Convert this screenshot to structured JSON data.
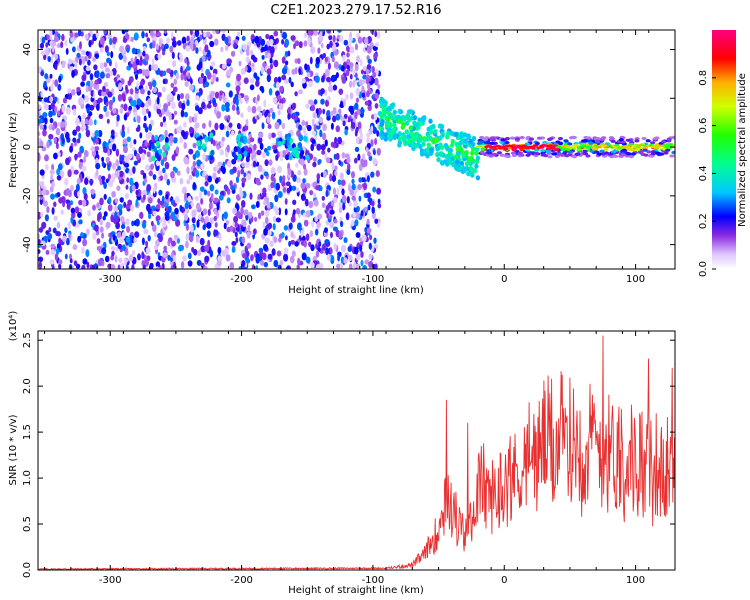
{
  "title": "C2E1.2023.279.17.52.R16",
  "chart_data": [
    {
      "type": "heatmap",
      "xlabel": "Height of straight line (km)",
      "ylabel": "Frequency (Hz)",
      "xlim": [
        -355,
        130
      ],
      "ylim": [
        -50,
        48
      ],
      "xticks": [
        -300,
        -200,
        -100,
        0,
        100
      ],
      "yticks": [
        -40,
        -20,
        0,
        20,
        40
      ],
      "colorbar": {
        "label": "Normalized spectral amplitude",
        "range": [
          0,
          1
        ],
        "ticks": [
          0.0,
          0.2,
          0.4,
          0.6,
          0.8
        ],
        "colormap": "rainbow (white-violet-blue-cyan-green-yellow-red-magenta)"
      },
      "regions": [
        {
          "x": [
            -355,
            -95
          ],
          "freq": [
            -50,
            48
          ],
          "amplitude": [
            0.05,
            0.3
          ],
          "pattern": "broadband scattered noise"
        },
        {
          "x": [
            -95,
            -20
          ],
          "freq_center": [
            12,
            -5
          ],
          "amplitude": [
            0.3,
            0.6
          ],
          "pattern": "descending band"
        },
        {
          "x": [
            -20,
            130
          ],
          "freq_center": 0,
          "amplitude": [
            0.5,
            1.0
          ],
          "pattern": "narrow band near 0 Hz, peak ~-15 to 40 km"
        }
      ],
      "grid": false
    },
    {
      "type": "line",
      "xlabel": "Height of straight line (km)",
      "ylabel": "SNR (10 * v/v)",
      "y_multiplier": "(x10⁴)",
      "xlim": [
        -355,
        130
      ],
      "ylim": [
        0,
        2.6
      ],
      "xticks": [
        -300,
        -200,
        -100,
        0,
        100
      ],
      "yticks": [
        0.0,
        0.5,
        1.0,
        1.5,
        2.0,
        2.5
      ],
      "color": "#e83030",
      "envelope": {
        "x": [
          -355,
          -90,
          -70,
          -60,
          -50,
          -45,
          -40,
          -35,
          -30,
          -25,
          -20,
          -15,
          -10,
          -5,
          0,
          10,
          20,
          30,
          40,
          50,
          60,
          70,
          75,
          80,
          90,
          100,
          110,
          120,
          130
        ],
        "y": [
          0.01,
          0.02,
          0.06,
          0.2,
          0.5,
          0.9,
          0.75,
          0.55,
          0.4,
          0.6,
          1.0,
          1.0,
          0.85,
          0.95,
          1.05,
          1.2,
          1.35,
          1.5,
          1.55,
          1.55,
          1.5,
          1.55,
          1.5,
          1.45,
          1.4,
          1.3,
          1.25,
          1.2,
          1.15
        ]
      },
      "notable_peaks": [
        {
          "x": -44,
          "y": 1.85
        },
        {
          "x": -28,
          "y": 1.6
        },
        {
          "x": 75,
          "y": 2.55
        },
        {
          "x": 110,
          "y": 2.3
        },
        {
          "x": 128,
          "y": 2.2
        }
      ],
      "grid": false
    }
  ]
}
